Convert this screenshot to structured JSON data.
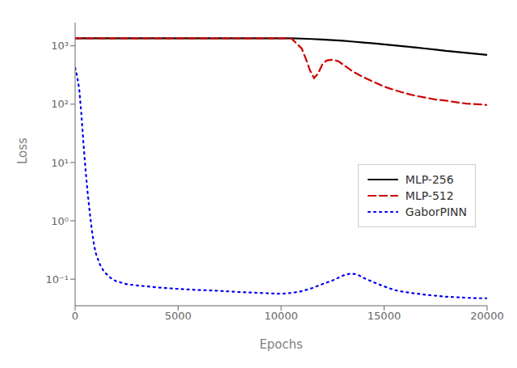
{
  "chart_data": {
    "type": "line",
    "xlabel": "Epochs",
    "ylabel": "Loss",
    "log": "y",
    "grid": false,
    "legend": "lower right",
    "xlim": [
      0,
      20000
    ],
    "ylim": [
      0.035,
      2500
    ],
    "xticks": [
      0,
      5000,
      10000,
      15000,
      20000
    ],
    "yticks": [
      {
        "value": 0.1,
        "label": "10⁻¹"
      },
      {
        "value": 1,
        "label": "10⁰"
      },
      {
        "value": 10,
        "label": "10¹"
      },
      {
        "value": 100,
        "label": "10²"
      },
      {
        "value": 1000,
        "label": "10³"
      }
    ],
    "series": [
      {
        "name": "MLP-256",
        "color": "#000000",
        "line_style": "solid",
        "x": [
          0,
          1000,
          2000,
          3000,
          4000,
          5000,
          6000,
          7000,
          8000,
          9000,
          10000,
          10500,
          11000,
          11500,
          12000,
          12500,
          13000,
          13500,
          14000,
          14500,
          15000,
          15500,
          16000,
          16500,
          17000,
          17500,
          18000,
          18500,
          19000,
          19500,
          20000
        ],
        "values": [
          1350,
          1350,
          1350,
          1350,
          1350,
          1350,
          1350,
          1350,
          1350,
          1350,
          1350,
          1345,
          1330,
          1310,
          1280,
          1250,
          1220,
          1180,
          1140,
          1100,
          1060,
          1020,
          980,
          940,
          900,
          860,
          820,
          790,
          760,
          730,
          700
        ]
      },
      {
        "name": "MLP-512",
        "color": "#cc0000",
        "line_style": "dashed",
        "x": [
          0,
          1000,
          2000,
          3000,
          4000,
          5000,
          6000,
          7000,
          8000,
          9000,
          10000,
          10500,
          11000,
          11200,
          11400,
          11600,
          11800,
          12000,
          12200,
          12500,
          12800,
          13000,
          13500,
          14000,
          14500,
          15000,
          15500,
          16000,
          16500,
          17000,
          17500,
          18000,
          18500,
          19000,
          19500,
          20000
        ],
        "values": [
          1350,
          1350,
          1350,
          1350,
          1350,
          1350,
          1350,
          1350,
          1350,
          1350,
          1350,
          1340,
          900,
          600,
          380,
          280,
          340,
          480,
          560,
          580,
          540,
          480,
          360,
          290,
          240,
          200,
          175,
          155,
          140,
          130,
          120,
          115,
          108,
          102,
          100,
          97
        ]
      },
      {
        "name": "GaborPINN",
        "color": "#0000ee",
        "line_style": "dotted",
        "x": [
          0,
          100,
          200,
          300,
          400,
          500,
          600,
          700,
          800,
          900,
          1000,
          1200,
          1400,
          1600,
          1800,
          2000,
          2500,
          3000,
          3500,
          4000,
          5000,
          6000,
          7000,
          8000,
          9000,
          10000,
          10500,
          11000,
          11500,
          12000,
          12500,
          13000,
          13200,
          13400,
          13600,
          13800,
          14000,
          14500,
          15000,
          15500,
          16000,
          16500,
          17000,
          17500,
          18000,
          18500,
          19000,
          19500,
          20000
        ],
        "values": [
          420,
          300,
          180,
          70,
          22,
          8.0,
          3.2,
          1.5,
          0.75,
          0.42,
          0.28,
          0.18,
          0.135,
          0.115,
          0.1,
          0.092,
          0.082,
          0.078,
          0.075,
          0.072,
          0.068,
          0.065,
          0.063,
          0.06,
          0.058,
          0.056,
          0.058,
          0.062,
          0.07,
          0.082,
          0.095,
          0.115,
          0.12,
          0.125,
          0.122,
          0.115,
          0.105,
          0.088,
          0.075,
          0.065,
          0.06,
          0.057,
          0.054,
          0.052,
          0.05,
          0.049,
          0.048,
          0.047,
          0.047
        ]
      }
    ]
  }
}
